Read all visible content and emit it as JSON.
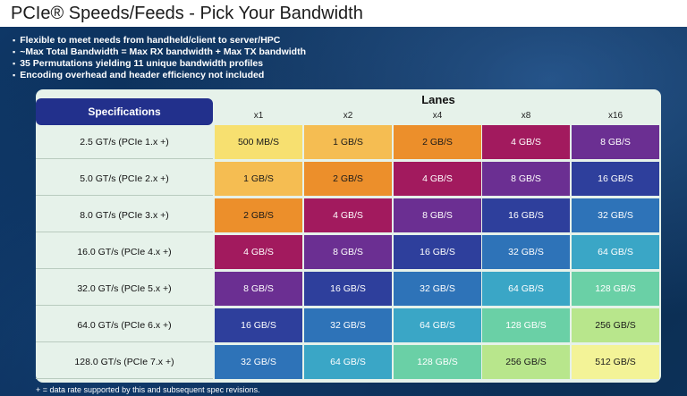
{
  "title": "PCIe® Speeds/Feeds - Pick Your Bandwidth",
  "bullets": [
    "Flexible to meet needs from handheld/client to server/HPC",
    "~Max Total Bandwidth = Max RX bandwidth + Max TX bandwidth",
    "35 Permutations yielding 11 unique bandwidth profiles",
    "Encoding overhead and header efficiency not included"
  ],
  "table": {
    "spec_header": "Specifications",
    "lanes_label": "Lanes",
    "lane_headers": [
      "x1",
      "x2",
      "x4",
      "x8",
      "x16"
    ],
    "rows": [
      {
        "label": "2.5 GT/s (PCIe 1.x +)",
        "cells": [
          "500 MB/S",
          "1 GB/S",
          "2 GB/S",
          "4 GB/S",
          "8 GB/S"
        ]
      },
      {
        "label": "5.0 GT/s (PCIe 2.x +)",
        "cells": [
          "1 GB/S",
          "2 GB/S",
          "4 GB/S",
          "8 GB/S",
          "16 GB/S"
        ]
      },
      {
        "label": "8.0 GT/s (PCIe 3.x +)",
        "cells": [
          "2 GB/S",
          "4 GB/S",
          "8 GB/S",
          "16 GB/S",
          "32 GB/S"
        ]
      },
      {
        "label": "16.0 GT/s (PCIe 4.x +)",
        "cells": [
          "4 GB/S",
          "8 GB/S",
          "16 GB/S",
          "32 GB/S",
          "64 GB/S"
        ]
      },
      {
        "label": "32.0 GT/s (PCIe 5.x +)",
        "cells": [
          "8 GB/S",
          "16 GB/S",
          "32 GB/S",
          "64 GB/S",
          "128 GB/S"
        ]
      },
      {
        "label": "64.0 GT/s (PCIe 6.x +)",
        "cells": [
          "16 GB/S",
          "32 GB/S",
          "64 GB/S",
          "128 GB/S",
          "256 GB/S"
        ]
      },
      {
        "label": "128.0 GT/s (PCIe 7.x +)",
        "cells": [
          "32 GB/S",
          "64 GB/S",
          "128 GB/S",
          "256 GB/S",
          "512 GB/S"
        ]
      }
    ],
    "value_colors": {
      "500 MB/S": {
        "bg": "#f7e070",
        "fg": "#1a1a1a"
      },
      "1 GB/S": {
        "bg": "#f5bd52",
        "fg": "#1a1a1a"
      },
      "2 GB/S": {
        "bg": "#ec8f2b",
        "fg": "#1a1a1a"
      },
      "4 GB/S": {
        "bg": "#a21a5e",
        "fg": "#ffffff"
      },
      "8 GB/S": {
        "bg": "#6b2f92",
        "fg": "#ffffff"
      },
      "16 GB/S": {
        "bg": "#2e3f9c",
        "fg": "#ffffff"
      },
      "32 GB/S": {
        "bg": "#2e73b8",
        "fg": "#ffffff"
      },
      "64 GB/S": {
        "bg": "#3aa6c6",
        "fg": "#ffffff"
      },
      "128 GB/S": {
        "bg": "#6ad0a6",
        "fg": "#ffffff"
      },
      "256 GB/S": {
        "bg": "#b8e68c",
        "fg": "#1a1a1a"
      },
      "512 GB/S": {
        "bg": "#f3f397",
        "fg": "#1a1a1a"
      }
    }
  },
  "footnote": "+ = data rate supported by this and subsequent spec revisions."
}
